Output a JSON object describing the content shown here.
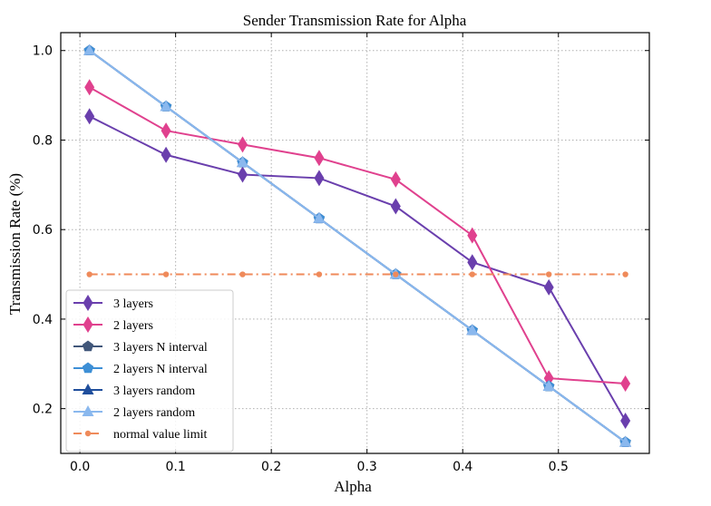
{
  "chart_data": {
    "type": "line",
    "title": "Sender Transmission Rate for Alpha",
    "xlabel": "Alpha",
    "ylabel": "Transmission Rate (%)",
    "xlim": [
      -0.02,
      0.595
    ],
    "ylim": [
      0.1,
      1.04
    ],
    "xticks": [
      0.0,
      0.1,
      0.2,
      0.3,
      0.4,
      0.5
    ],
    "xtick_labels": [
      "0.0",
      "0.1",
      "0.2",
      "0.3",
      "0.4",
      "0.5"
    ],
    "yticks": [
      0.2,
      0.4,
      0.6,
      0.8,
      1.0
    ],
    "ytick_labels": [
      "0.2",
      "0.4",
      "0.6",
      "0.8",
      "1.0"
    ],
    "grid": true,
    "legend_position": "bottom-left",
    "x": [
      0.01,
      0.09,
      0.17,
      0.25,
      0.33,
      0.41,
      0.49,
      0.57
    ],
    "series": [
      {
        "name": "3 layers",
        "color": "#6a3fad",
        "marker": "thin_diamond",
        "line": "solid",
        "values": [
          0.853,
          0.767,
          0.723,
          0.715,
          0.652,
          0.527,
          0.471,
          0.173
        ]
      },
      {
        "name": "2 layers",
        "color": "#e0418e",
        "marker": "thin_diamond",
        "line": "solid",
        "values": [
          0.918,
          0.821,
          0.79,
          0.76,
          0.712,
          0.587,
          0.268,
          0.256
        ]
      },
      {
        "name": "3 layers N interval",
        "color": "#41577a",
        "marker": "pentagon",
        "line": "solid",
        "values": [
          1.0,
          0.875,
          0.75,
          0.625,
          0.5,
          0.375,
          0.25,
          0.125
        ]
      },
      {
        "name": "2 layers N interval",
        "color": "#3d8fd6",
        "marker": "pentagon",
        "line": "solid",
        "values": [
          1.0,
          0.875,
          0.75,
          0.625,
          0.5,
          0.375,
          0.25,
          0.125
        ]
      },
      {
        "name": "3 layers random",
        "color": "#1f4e9c",
        "marker": "triangle",
        "line": "solid",
        "values": [
          1.0,
          0.875,
          0.75,
          0.625,
          0.5,
          0.375,
          0.25,
          0.125
        ]
      },
      {
        "name": "2 layers random",
        "color": "#8ab8ee",
        "marker": "triangle",
        "line": "solid",
        "values": [
          1.0,
          0.875,
          0.75,
          0.625,
          0.5,
          0.375,
          0.25,
          0.125
        ]
      },
      {
        "name": "normal value limit",
        "color": "#ef8a5a",
        "marker": "circle",
        "line": "dashdot",
        "values": [
          0.5,
          0.5,
          0.5,
          0.5,
          0.5,
          0.5,
          0.5,
          0.5
        ]
      }
    ]
  }
}
